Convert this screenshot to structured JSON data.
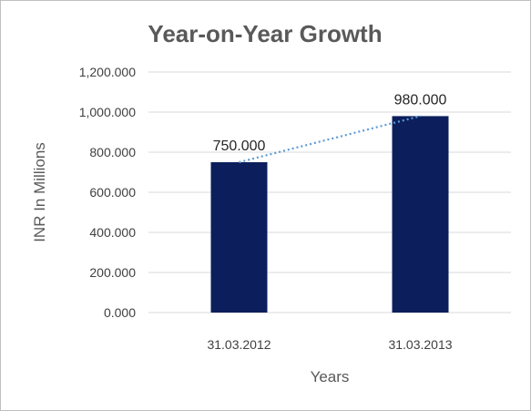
{
  "chart_data": {
    "type": "bar",
    "title": "Year-on-Year Growth",
    "xlabel": "Years",
    "ylabel": "INR In Millions",
    "categories": [
      "31.03.2012",
      "31.03.2013"
    ],
    "values": [
      750,
      980
    ],
    "data_labels": [
      "750.000",
      "980.000"
    ],
    "ylim": [
      0,
      1200
    ],
    "yticks": [
      0,
      200,
      400,
      600,
      800,
      1000,
      1200
    ],
    "ytick_labels": [
      "0.000",
      "200.000",
      "400.000",
      "600.000",
      "800.000",
      "1,000.000",
      "1,200.000"
    ],
    "grid": true,
    "legend": "none",
    "trendline": "linear",
    "colors": {
      "bar": "#0c1f5c",
      "trendline": "#5b9bd5",
      "grid": "#d9d9d9",
      "text": "#595959"
    }
  }
}
